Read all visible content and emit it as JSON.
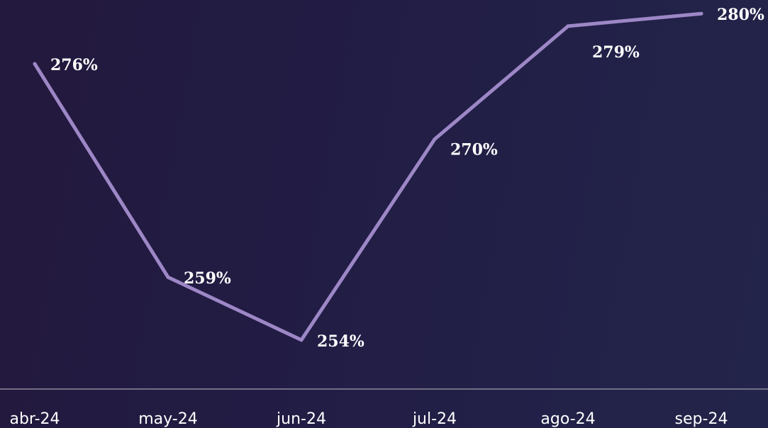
{
  "chart_data": {
    "type": "line",
    "categories": [
      "abr-24",
      "may-24",
      "jun-24",
      "jul-24",
      "ago-24",
      "sep-24"
    ],
    "series": [
      {
        "values": [
          276,
          259,
          254,
          270,
          279,
          280
        ],
        "labels": [
          "276%",
          "259%",
          "254%",
          "270%",
          "279%",
          "280%"
        ]
      }
    ],
    "title": "",
    "xlabel": "",
    "ylabel": "",
    "y_unit": "%",
    "ylim": [
      253,
      281
    ],
    "grid": false,
    "legend": "none",
    "colors": {
      "line": "#9d87c6",
      "axis": "#8c8a9c",
      "text": "#ffffff"
    }
  }
}
